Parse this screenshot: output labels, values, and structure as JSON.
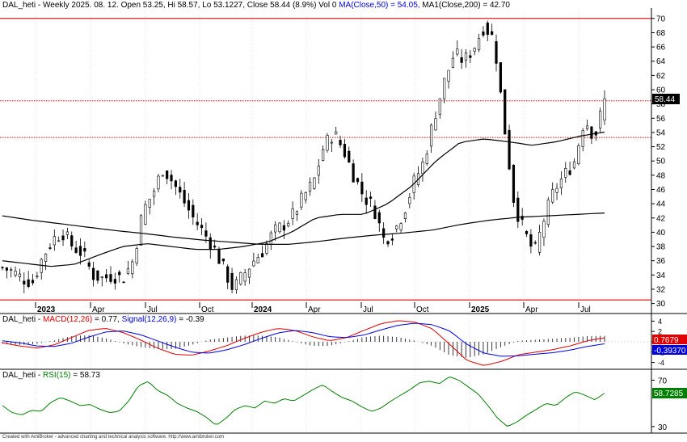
{
  "header": {
    "symbol": "DAL_heti",
    "info": " - Weekly 2025. 08. 12. Open 53.25, Hi 58.57, Lo 53.1227, Close 58.44 (8.9%) Vol 0 ",
    "ma50_label": "MA(Close,50) = 54.05,",
    "ma200_label": " MA1(Close,200) = 42.70"
  },
  "macd_header": {
    "symbol": "DAL_heti",
    "sep1": " - ",
    "macd_label": "MACD(12,26)",
    "macd_value": " = 0.77, ",
    "signal_label": "Signal(12,26,9)",
    "signal_value": " = -0.39"
  },
  "rsi_header": {
    "symbol": "DAL_heti",
    "sep1": " - ",
    "rsi_label": "RSI(15)",
    "rsi_value": " = 58.73"
  },
  "badges": {
    "price": "58.44",
    "macd": "0.7679",
    "signal": "-0.39370",
    "rsi": "58.7285"
  },
  "footer_text": "Created with AmiBroker - advanced charting and technical analysis software. http://www.amibroker.com",
  "colors": {
    "price": "#000000",
    "macd": "#e00000",
    "signal": "#0000e0",
    "rsi": "#008000",
    "hline": "#e00000",
    "badge_green": "#008000"
  },
  "chart_data": [
    {
      "type": "candlestick",
      "ylim": [
        29.5,
        71
      ],
      "yticks": [
        "30",
        "32",
        "34",
        "36",
        "38",
        "40",
        "42",
        "44",
        "46",
        "48",
        "50",
        "52",
        "54",
        "56",
        "58",
        "60",
        "62",
        "64",
        "66",
        "68",
        "70"
      ],
      "x_labels": [
        "2023",
        "Apr",
        "Jul",
        "Oct",
        "2024",
        "Apr",
        "Jul",
        "Oct",
        "2025",
        "Apr",
        "Jul"
      ],
      "horizontal_lines": [
        {
          "value": 70.0,
          "style": "solid"
        },
        {
          "value": 58.44,
          "style": "dotted"
        },
        {
          "value": 53.3,
          "style": "dotted"
        },
        {
          "value": 30.5,
          "style": "solid"
        }
      ],
      "close_anchors": [
        35,
        34.5,
        33.5,
        33,
        36.5,
        39,
        40,
        38,
        37,
        34,
        33.5,
        34,
        33.5,
        36,
        43,
        45.5,
        49,
        47,
        44.5,
        42,
        40,
        38,
        35,
        32,
        34,
        36,
        37.5,
        40,
        41,
        42.5,
        45,
        47,
        52,
        54,
        51.5,
        48,
        45,
        43.5,
        39,
        40,
        43,
        47,
        50,
        56,
        61,
        65,
        64,
        66,
        69,
        67,
        55,
        44,
        40,
        37,
        42,
        46,
        48,
        50,
        56,
        53.3,
        58.44
      ],
      "ma50_anchors": [
        36,
        35.6,
        35.2,
        35.5,
        36.8,
        38,
        38.4,
        38,
        37.6,
        37.6,
        38,
        38.6,
        40,
        42,
        42.5,
        42.5,
        44,
        46.5,
        50,
        52.6,
        53.1,
        52.7,
        52.2,
        52.7,
        53.5,
        54.05
      ],
      "ma200_anchors": [
        42.3,
        41.7,
        41.2,
        40.7,
        40.2,
        39.8,
        39.3,
        38.9,
        38.6,
        38.3,
        38.3,
        38.7,
        39.2,
        39.6,
        39.9,
        40.3,
        41.1,
        41.7,
        42.1,
        42.3,
        42.5,
        42.7
      ]
    },
    {
      "type": "line",
      "ylim": [
        -5,
        5
      ],
      "yticks": [
        "-4",
        "-2",
        "0",
        "2",
        "4"
      ],
      "series": [
        {
          "name": "MACD(12,26)",
          "values": [
            -0.2,
            -0.8,
            -1.2,
            -0.6,
            0.8,
            2.2,
            2.6,
            1.8,
            0.4,
            -1.2,
            -2.4,
            -2.6,
            -1.8,
            -0.8,
            0.6,
            1.8,
            2.6,
            2.2,
            1.0,
            0.2,
            0.8,
            2.2,
            3.5,
            4.1,
            3.8,
            2.5,
            -0.5,
            -3.6,
            -4.6,
            -3.8,
            -2.5,
            -2.0,
            -1.5,
            -0.8,
            0.2,
            0.77
          ]
        },
        {
          "name": "Signal(12,26,9)",
          "values": [
            0.2,
            -0.2,
            -0.8,
            -0.9,
            -0.3,
            0.9,
            1.9,
            2.1,
            1.4,
            0.2,
            -1.0,
            -2.0,
            -2.2,
            -1.6,
            -0.6,
            0.6,
            1.7,
            2.2,
            1.8,
            1.0,
            0.8,
            1.3,
            2.3,
            3.2,
            3.6,
            3.3,
            2.1,
            -0.5,
            -2.2,
            -2.8,
            -2.7,
            -2.4,
            -2.1,
            -1.6,
            -0.9,
            -0.39
          ]
        }
      ]
    },
    {
      "type": "line",
      "ylim": [
        25,
        78
      ],
      "yticks": [
        "30",
        "70"
      ],
      "series": [
        {
          "name": "RSI(15)",
          "values": [
            48,
            42,
            40,
            44,
            43,
            51,
            55,
            52,
            48,
            49,
            45,
            42,
            43,
            52,
            65,
            69,
            61,
            57,
            50,
            46,
            43,
            38,
            31,
            37,
            45,
            48,
            46,
            52,
            50,
            54,
            52,
            57,
            62,
            66,
            60,
            55,
            52,
            47,
            43,
            46,
            52,
            57,
            62,
            68,
            69,
            67,
            73,
            70,
            64,
            58,
            48,
            37,
            30,
            34,
            40,
            45,
            50,
            48,
            55,
            60,
            57,
            53,
            58.73
          ]
        }
      ]
    }
  ]
}
